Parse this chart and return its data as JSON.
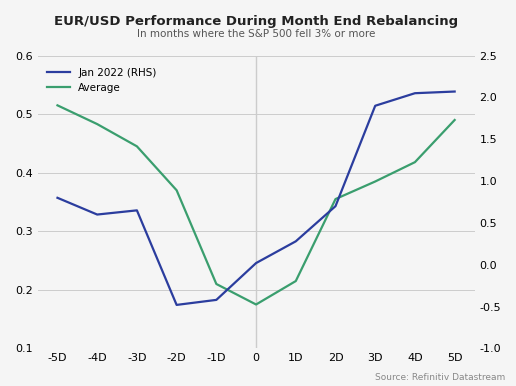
{
  "title": "EUR/USD Performance During Month End Rebalancing",
  "subtitle": "In months where the S&P 500 fell 3% or more",
  "source": "Source: Refinitiv Datastream",
  "x_labels": [
    "-5D",
    "-4D",
    "-3D",
    "-2D",
    "-1D",
    "0",
    "1D",
    "2D",
    "3D",
    "4D",
    "5D"
  ],
  "x_values": [
    -5,
    -4,
    -3,
    -2,
    -1,
    0,
    1,
    2,
    3,
    4,
    5
  ],
  "jan2022_rhs_values": [
    0.8,
    0.6,
    0.65,
    -0.48,
    -0.42,
    0.02,
    0.28,
    0.7,
    1.9,
    2.05,
    2.07
  ],
  "average_lhs_values": [
    0.515,
    0.483,
    0.445,
    0.37,
    0.21,
    0.175,
    0.215,
    0.355,
    0.385,
    0.418,
    0.49
  ],
  "left_ylim": [
    0.1,
    0.6
  ],
  "left_yticks": [
    0.1,
    0.2,
    0.3,
    0.4,
    0.5,
    0.6
  ],
  "right_ylim": [
    -1.0,
    2.5
  ],
  "right_yticks": [
    -1.0,
    -0.5,
    0.0,
    0.5,
    1.0,
    1.5,
    2.0,
    2.5
  ],
  "jan2022_color": "#2b3d9e",
  "average_color": "#3a9e6e",
  "background_color": "#f5f5f5",
  "legend_labels": [
    "Jan 2022 (RHS)",
    "Average"
  ],
  "grid_color": "#cccccc",
  "title_color": "#222222",
  "subtitle_color": "#555555",
  "source_color": "#888888"
}
